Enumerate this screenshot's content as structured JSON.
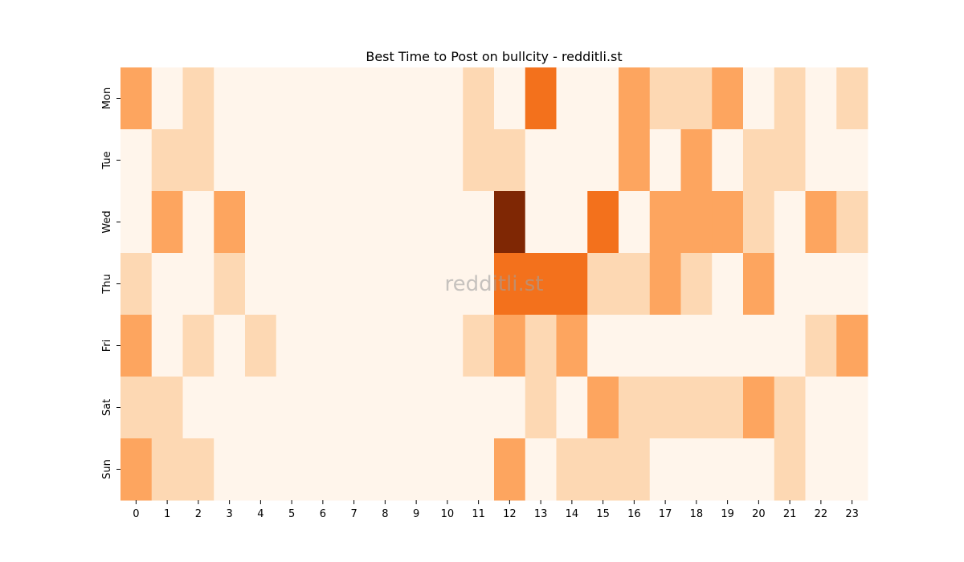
{
  "chart_data": {
    "type": "heatmap",
    "title": "Best Time to Post on bullcity - redditli.st",
    "watermark": "redditli.st",
    "xlabel": "",
    "ylabel": "",
    "x_categories": [
      "0",
      "1",
      "2",
      "3",
      "4",
      "5",
      "6",
      "7",
      "8",
      "9",
      "10",
      "11",
      "12",
      "13",
      "14",
      "15",
      "16",
      "17",
      "18",
      "19",
      "20",
      "21",
      "22",
      "23"
    ],
    "y_categories": [
      "Mon",
      "Tue",
      "Wed",
      "Thu",
      "Fri",
      "Sat",
      "Sun"
    ],
    "value_range": [
      0,
      4
    ],
    "colorscale": {
      "low": "#fff5eb",
      "mid": "#fd8d3c",
      "high": "#7f2704"
    },
    "legend": "none",
    "grid": false,
    "values": [
      [
        2,
        0,
        1,
        0,
        0,
        0,
        0,
        0,
        0,
        0,
        0,
        1,
        0,
        3,
        0,
        0,
        2,
        1,
        1,
        2,
        0,
        1,
        0,
        1
      ],
      [
        0,
        1,
        1,
        0,
        0,
        0,
        0,
        0,
        0,
        0,
        0,
        1,
        1,
        0,
        0,
        0,
        2,
        0,
        2,
        0,
        1,
        1,
        0,
        0
      ],
      [
        0,
        2,
        0,
        2,
        0,
        0,
        0,
        0,
        0,
        0,
        0,
        0,
        4,
        0,
        0,
        3,
        0,
        2,
        2,
        2,
        1,
        0,
        2,
        1
      ],
      [
        1,
        0,
        0,
        1,
        0,
        0,
        0,
        0,
        0,
        0,
        0,
        0,
        3,
        3,
        3,
        1,
        1,
        2,
        1,
        0,
        2,
        0,
        0,
        0
      ],
      [
        2,
        0,
        1,
        0,
        1,
        0,
        0,
        0,
        0,
        0,
        0,
        1,
        2,
        1,
        2,
        0,
        0,
        0,
        0,
        0,
        0,
        0,
        1,
        2
      ],
      [
        1,
        1,
        0,
        0,
        0,
        0,
        0,
        0,
        0,
        0,
        0,
        0,
        0,
        1,
        0,
        2,
        1,
        1,
        1,
        1,
        2,
        1,
        0,
        0
      ],
      [
        2,
        1,
        1,
        0,
        0,
        0,
        0,
        0,
        0,
        0,
        0,
        0,
        2,
        0,
        1,
        1,
        1,
        0,
        0,
        0,
        0,
        1,
        0,
        0
      ]
    ]
  }
}
